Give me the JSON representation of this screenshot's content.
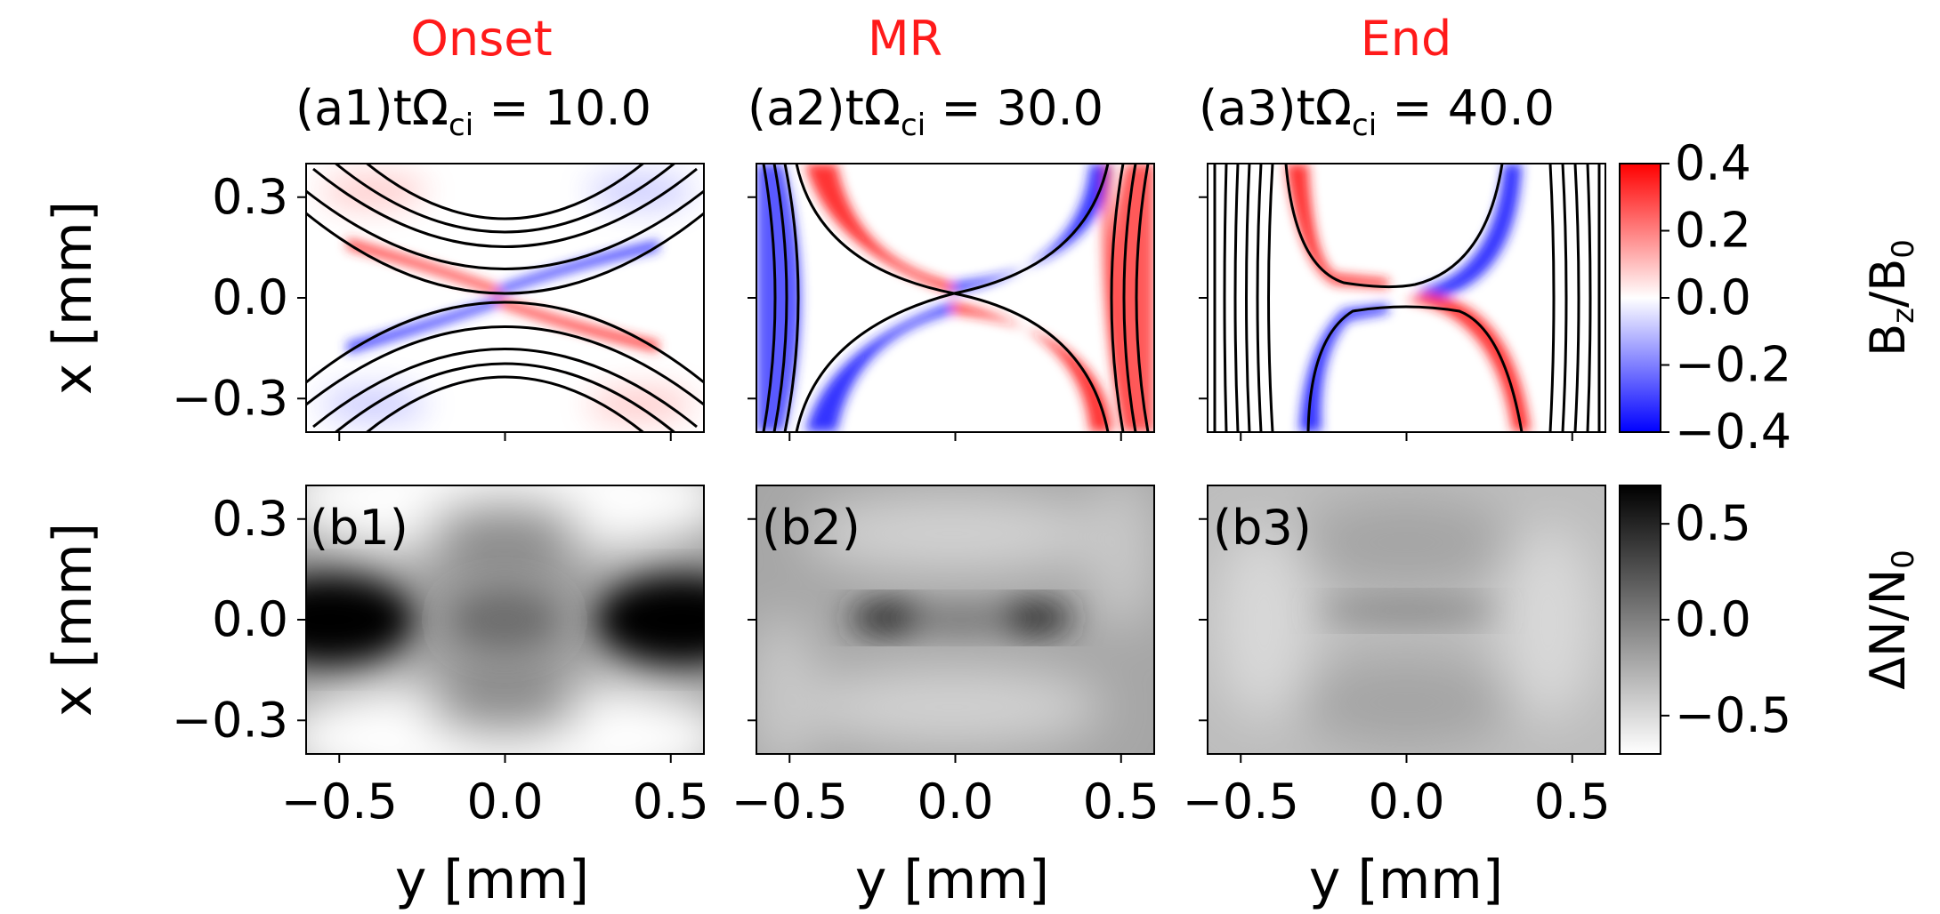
{
  "figure": {
    "phase_labels": [
      "Onset",
      "MR",
      "End"
    ],
    "panel_prefixes": [
      "(a1)",
      "(a2)",
      "(a3)"
    ],
    "time_symbol": "tΩ",
    "time_subscript": "ci",
    "time_values": [
      "10.0",
      "30.0",
      "40.0"
    ],
    "bottom_labels": [
      "(b1)",
      "(b2)",
      "(b3)"
    ],
    "x_axis_label": "y [mm]",
    "y_axis_label": "x [mm]",
    "colorbar_top_label": "B",
    "colorbar_top_sub1": "z",
    "colorbar_top_mid": "/B",
    "colorbar_top_sub2": "0",
    "colorbar_bottom_label": "ΔN/N",
    "colorbar_bottom_sub": "0",
    "colors": {
      "phase_label": "#ff1a1a",
      "positive": "#ff0000",
      "negative": "#0000ff",
      "dark": "#000000"
    }
  },
  "chart_data": [
    {
      "type": "heatmap",
      "quantity": "Bz/B0",
      "colormap": "bwr",
      "xlim": [
        -0.6,
        0.6
      ],
      "ylim": [
        -0.4,
        0.4
      ],
      "x_ticks": [
        -0.5,
        0.0,
        0.5
      ],
      "y_ticks": [
        0.3,
        0.0,
        -0.3
      ],
      "x_tick_labels": [
        "-0.5",
        "0.0",
        "0.5"
      ],
      "y_tick_labels": [
        "0.3",
        "0.0",
        "−0.3"
      ],
      "colorbar": {
        "range": [
          -0.4,
          0.4
        ],
        "ticks": [
          0.4,
          0.2,
          0.0,
          -0.2,
          -0.4
        ],
        "tick_labels": [
          "0.4",
          "0.2",
          "0.0",
          "−0.2",
          "−0.4"
        ]
      },
      "panels": [
        "a1",
        "a2",
        "a3"
      ]
    },
    {
      "type": "heatmap",
      "quantity": "ΔN/N0",
      "colormap": "gray_r",
      "xlim": [
        -0.6,
        0.6
      ],
      "ylim": [
        -0.4,
        0.4
      ],
      "x_ticks": [
        -0.5,
        0.0,
        0.5
      ],
      "y_ticks": [
        0.3,
        0.0,
        -0.3
      ],
      "x_tick_labels": [
        "−0.5",
        "0.0",
        "0.5"
      ],
      "y_tick_labels": [
        "0.3",
        "0.0",
        "−0.3"
      ],
      "colorbar": {
        "range": [
          -0.7,
          0.7
        ],
        "ticks": [
          0.5,
          0.0,
          -0.5
        ],
        "tick_labels": [
          "0.5",
          "0.0",
          "−0.5"
        ]
      },
      "panels": [
        "b1",
        "b2",
        "b3"
      ]
    }
  ]
}
